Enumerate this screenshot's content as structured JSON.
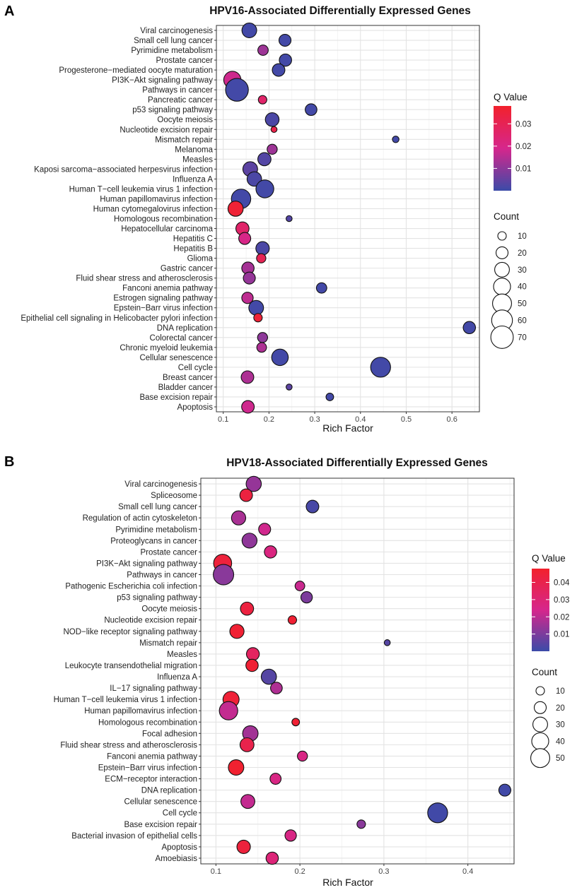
{
  "chart_data": [
    {
      "panel_label": "A",
      "type": "scatter",
      "title": "HPV16-Associated Differentially Expressed Genes",
      "xlabel": "Rich Factor",
      "ylabel": "",
      "xlim": [
        0.085,
        0.66
      ],
      "xticks": [
        0.1,
        0.2,
        0.3,
        0.4,
        0.5,
        0.6
      ],
      "xtick_labels": [
        "0.1",
        "0.2",
        "0.3",
        "0.4",
        "0.5",
        "0.6"
      ],
      "grid": true,
      "color_legend": {
        "title": "Q Value",
        "range": [
          0.0,
          0.038
        ],
        "ticks": [
          0.01,
          0.02,
          0.03
        ],
        "tick_labels": [
          "0.01",
          "0.02",
          "0.03"
        ],
        "low_color": "#3B4BA8",
        "mid_color": "#D6268C",
        "high_color": "#F2212C",
        "placement": "right"
      },
      "size_legend": {
        "title": "Count",
        "values": [
          10,
          20,
          30,
          40,
          50,
          60,
          70
        ],
        "labels": [
          "10",
          "20",
          "30",
          "40",
          "50",
          "60",
          "70"
        ],
        "placement": "right"
      },
      "points": [
        {
          "pathway": "Viral carcinogenesis",
          "rich_factor": 0.157,
          "count": 30,
          "q_value": 0.001
        },
        {
          "pathway": "Small cell lung cancer",
          "rich_factor": 0.235,
          "count": 20,
          "q_value": 0.001
        },
        {
          "pathway": "Pyrimidine metabolism",
          "rich_factor": 0.187,
          "count": 15,
          "q_value": 0.012
        },
        {
          "pathway": "Prostate cancer",
          "rich_factor": 0.236,
          "count": 21,
          "q_value": 0.001
        },
        {
          "pathway": "Progesterone−mediated oocyte maturation",
          "rich_factor": 0.221,
          "count": 22,
          "q_value": 0.001
        },
        {
          "pathway": "PI3K−Akt signaling pathway",
          "rich_factor": 0.12,
          "count": 41,
          "q_value": 0.018
        },
        {
          "pathway": "Pathways in cancer",
          "rich_factor": 0.13,
          "count": 72,
          "q_value": 0.001
        },
        {
          "pathway": "Pancreatic cancer",
          "rich_factor": 0.186,
          "count": 10,
          "q_value": 0.026
        },
        {
          "pathway": "p53 signaling pathway",
          "rich_factor": 0.292,
          "count": 19,
          "q_value": 0.001
        },
        {
          "pathway": "Oocyte meiosis",
          "rich_factor": 0.207,
          "count": 26,
          "q_value": 0.002
        },
        {
          "pathway": "Nucleotide excision repair",
          "rich_factor": 0.211,
          "count": 5,
          "q_value": 0.032
        },
        {
          "pathway": "Mismatch repair",
          "rich_factor": 0.477,
          "count": 6,
          "q_value": 0.001
        },
        {
          "pathway": "Melanoma",
          "rich_factor": 0.207,
          "count": 14,
          "q_value": 0.012
        },
        {
          "pathway": "Measles",
          "rich_factor": 0.19,
          "count": 24,
          "q_value": 0.003
        },
        {
          "pathway": "Kaposi sarcoma−associated herpesvirus infection",
          "rich_factor": 0.159,
          "count": 30,
          "q_value": 0.004
        },
        {
          "pathway": "Influenza A",
          "rich_factor": 0.168,
          "count": 29,
          "q_value": 0.002
        },
        {
          "pathway": "Human T−cell leukemia virus 1 infection",
          "rich_factor": 0.191,
          "count": 44,
          "q_value": 0.001
        },
        {
          "pathway": "Human papillomavirus infection",
          "rich_factor": 0.139,
          "count": 52,
          "q_value": 0.001
        },
        {
          "pathway": "Human cytomegalovirus infection",
          "rich_factor": 0.127,
          "count": 32,
          "q_value": 0.036
        },
        {
          "pathway": "Homologous recombination",
          "rich_factor": 0.244,
          "count": 5,
          "q_value": 0.003
        },
        {
          "pathway": "Hepatocellular carcinoma",
          "rich_factor": 0.142,
          "count": 24,
          "q_value": 0.026
        },
        {
          "pathway": "Hepatitis C",
          "rich_factor": 0.147,
          "count": 20,
          "q_value": 0.02
        },
        {
          "pathway": "Hepatitis B",
          "rich_factor": 0.186,
          "count": 25,
          "q_value": 0.002
        },
        {
          "pathway": "Glioma",
          "rich_factor": 0.183,
          "count": 12,
          "q_value": 0.03
        },
        {
          "pathway": "Gastric cancer",
          "rich_factor": 0.154,
          "count": 21,
          "q_value": 0.013
        },
        {
          "pathway": "Fluid shear stress and atherosclerosis",
          "rich_factor": 0.157,
          "count": 20,
          "q_value": 0.011
        },
        {
          "pathway": "Fanconi anemia pathway",
          "rich_factor": 0.315,
          "count": 15,
          "q_value": 0.001
        },
        {
          "pathway": "Estrogen signaling pathway",
          "rich_factor": 0.153,
          "count": 18,
          "q_value": 0.016
        },
        {
          "pathway": "Epstein−Barr virus infection",
          "rich_factor": 0.172,
          "count": 30,
          "q_value": 0.001
        },
        {
          "pathway": "Epithelial cell signaling in Helicobacter pylori infection",
          "rich_factor": 0.176,
          "count": 10,
          "q_value": 0.036
        },
        {
          "pathway": "DNA replication",
          "rich_factor": 0.638,
          "count": 21,
          "q_value": 0.001
        },
        {
          "pathway": "Colorectal cancer",
          "rich_factor": 0.186,
          "count": 14,
          "q_value": 0.01
        },
        {
          "pathway": "Chronic myeloid leukemia",
          "rich_factor": 0.184,
          "count": 13,
          "q_value": 0.014
        },
        {
          "pathway": "Cellular senescence",
          "rich_factor": 0.224,
          "count": 38,
          "q_value": 0.001
        },
        {
          "pathway": "Cell cycle",
          "rich_factor": 0.444,
          "count": 55,
          "q_value": 0.001
        },
        {
          "pathway": "Breast cancer",
          "rich_factor": 0.153,
          "count": 22,
          "q_value": 0.014
        },
        {
          "pathway": "Bladder cancer",
          "rich_factor": 0.244,
          "count": 5,
          "q_value": 0.004
        },
        {
          "pathway": "Base excision repair",
          "rich_factor": 0.333,
          "count": 8,
          "q_value": 0.001
        },
        {
          "pathway": "Apoptosis",
          "rich_factor": 0.154,
          "count": 22,
          "q_value": 0.018
        }
      ]
    },
    {
      "panel_label": "B",
      "type": "scatter",
      "title": "HPV18-Associated Differentially Expressed Genes",
      "xlabel": "Rich Factor",
      "ylabel": "",
      "xlim": [
        0.082,
        0.455
      ],
      "xticks": [
        0.1,
        0.2,
        0.3,
        0.4
      ],
      "xtick_labels": [
        "0.1",
        "0.2",
        "0.3",
        "0.4"
      ],
      "grid": true,
      "color_legend": {
        "title": "Q Value",
        "range": [
          0.0,
          0.048
        ],
        "ticks": [
          0.01,
          0.02,
          0.03,
          0.04
        ],
        "tick_labels": [
          "0.01",
          "0.02",
          "0.03",
          "0.04"
        ],
        "low_color": "#3B4BA8",
        "mid_color": "#D6268C",
        "high_color": "#F2212C",
        "placement": "right"
      },
      "size_legend": {
        "title": "Count",
        "values": [
          10,
          20,
          30,
          40,
          50
        ],
        "labels": [
          "10",
          "20",
          "30",
          "40",
          "50"
        ],
        "placement": "right"
      },
      "points": [
        {
          "pathway": "Viral carcinogenesis",
          "rich_factor": 0.145,
          "count": 32,
          "q_value": 0.014
        },
        {
          "pathway": "Spliceosome",
          "rich_factor": 0.136,
          "count": 22,
          "q_value": 0.043
        },
        {
          "pathway": "Small cell lung cancer",
          "rich_factor": 0.215,
          "count": 22,
          "q_value": 0.002
        },
        {
          "pathway": "Regulation of actin cytoskeleton",
          "rich_factor": 0.127,
          "count": 28,
          "q_value": 0.017
        },
        {
          "pathway": "Pyrimidine metabolism",
          "rich_factor": 0.158,
          "count": 20,
          "q_value": 0.023
        },
        {
          "pathway": "Proteoglycans in cancer",
          "rich_factor": 0.14,
          "count": 31,
          "q_value": 0.013
        },
        {
          "pathway": "Prostate cancer",
          "rich_factor": 0.165,
          "count": 21,
          "q_value": 0.027
        },
        {
          "pathway": "PI3K−Akt signaling pathway",
          "rich_factor": 0.108,
          "count": 45,
          "q_value": 0.044
        },
        {
          "pathway": "Pathways in cancer",
          "rich_factor": 0.109,
          "count": 58,
          "q_value": 0.012
        },
        {
          "pathway": "Pathogenic Escherichia coli infection",
          "rich_factor": 0.2,
          "count": 13,
          "q_value": 0.022
        },
        {
          "pathway": "p53 signaling pathway",
          "rich_factor": 0.208,
          "count": 18,
          "q_value": 0.01
        },
        {
          "pathway": "Oocyte meiosis",
          "rich_factor": 0.137,
          "count": 24,
          "q_value": 0.043
        },
        {
          "pathway": "Nucleotide excision repair",
          "rich_factor": 0.191,
          "count": 10,
          "q_value": 0.046
        },
        {
          "pathway": "NOD−like receptor signaling pathway",
          "rich_factor": 0.125,
          "count": 28,
          "q_value": 0.046
        },
        {
          "pathway": "Mismatch repair",
          "rich_factor": 0.304,
          "count": 5,
          "q_value": 0.004
        },
        {
          "pathway": "Measles",
          "rich_factor": 0.144,
          "count": 23,
          "q_value": 0.035
        },
        {
          "pathway": "Leukocyte transendothelial migration",
          "rich_factor": 0.143,
          "count": 21,
          "q_value": 0.046
        },
        {
          "pathway": "Influenza A",
          "rich_factor": 0.163,
          "count": 32,
          "q_value": 0.004
        },
        {
          "pathway": "IL−17 signaling pathway",
          "rich_factor": 0.172,
          "count": 19,
          "q_value": 0.018
        },
        {
          "pathway": "Human T−cell leukemia virus 1 infection",
          "rich_factor": 0.118,
          "count": 36,
          "q_value": 0.045
        },
        {
          "pathway": "Human papillomavirus infection",
          "rich_factor": 0.115,
          "count": 47,
          "q_value": 0.021
        },
        {
          "pathway": "Homologous recombination",
          "rich_factor": 0.195,
          "count": 8,
          "q_value": 0.046
        },
        {
          "pathway": "Focal adhesion",
          "rich_factor": 0.141,
          "count": 33,
          "q_value": 0.016
        },
        {
          "pathway": "Fluid shear stress and atherosclerosis",
          "rich_factor": 0.137,
          "count": 27,
          "q_value": 0.04
        },
        {
          "pathway": "Fanconi anemia pathway",
          "rich_factor": 0.203,
          "count": 14,
          "q_value": 0.026
        },
        {
          "pathway": "Epstein−Barr virus infection",
          "rich_factor": 0.124,
          "count": 33,
          "q_value": 0.047
        },
        {
          "pathway": "ECM−receptor interaction",
          "rich_factor": 0.171,
          "count": 17,
          "q_value": 0.026
        },
        {
          "pathway": "DNA replication",
          "rich_factor": 0.444,
          "count": 20,
          "q_value": 0.001
        },
        {
          "pathway": "Cellular senescence",
          "rich_factor": 0.138,
          "count": 27,
          "q_value": 0.021
        },
        {
          "pathway": "Cell cycle",
          "rich_factor": 0.364,
          "count": 55,
          "q_value": 0.001
        },
        {
          "pathway": "Base excision repair",
          "rich_factor": 0.273,
          "count": 10,
          "q_value": 0.012
        },
        {
          "pathway": "Bacterial invasion of epithelial cells",
          "rich_factor": 0.189,
          "count": 18,
          "q_value": 0.026
        },
        {
          "pathway": "Apoptosis",
          "rich_factor": 0.133,
          "count": 25,
          "q_value": 0.044
        },
        {
          "pathway": "Amoebiasis",
          "rich_factor": 0.167,
          "count": 21,
          "q_value": 0.029
        }
      ]
    }
  ]
}
